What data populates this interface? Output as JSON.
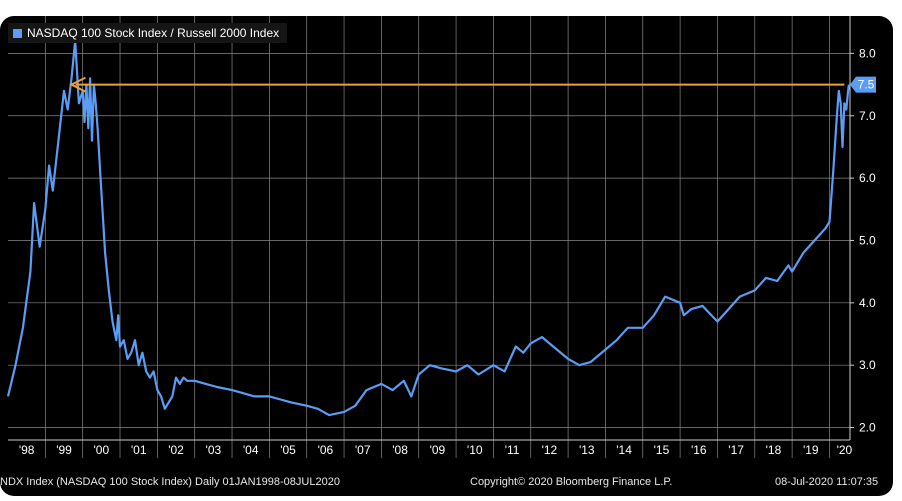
{
  "chart_data": {
    "type": "line",
    "legend": "NASDAQ 100 Stock Index / Russell 2000 Index",
    "legend_position": "top-left",
    "grid": true,
    "x_range": [
      1998.0,
      2020.55
    ],
    "ylim": [
      1.8,
      8.6
    ],
    "y_ticks": [
      "2.0",
      "3.0",
      "4.0",
      "5.0",
      "6.0",
      "7.0",
      "8.0"
    ],
    "x_ticks": [
      "'98",
      "'99",
      "'00",
      "'01",
      "'02",
      "'03",
      "'04",
      "'05",
      "'06",
      "'07",
      "'08",
      "'09",
      "'10",
      "'11",
      "'12",
      "'13",
      "'14",
      "'15",
      "'16",
      "'17",
      "'18",
      "'19",
      "'20"
    ],
    "last_value_label": "7.5",
    "series": [
      {
        "x": [
          1998.0,
          1998.2,
          1998.4,
          1998.6,
          1998.7,
          1998.85,
          1999.0,
          1999.1,
          1999.2,
          1999.35,
          1999.5,
          1999.6,
          1999.7,
          1999.8,
          1999.9,
          2000.0,
          2000.05,
          2000.1,
          2000.15,
          2000.2,
          2000.25,
          2000.3,
          2000.35,
          2000.4,
          2000.5,
          2000.6,
          2000.7,
          2000.8,
          2000.9,
          2000.95,
          2001.0,
          2001.1,
          2001.2,
          2001.3,
          2001.4,
          2001.5,
          2001.6,
          2001.7,
          2001.8,
          2001.9,
          2002.0,
          2002.1,
          2002.2,
          2002.3,
          2002.4,
          2002.5,
          2002.6,
          2002.7,
          2002.8,
          2003.0,
          2003.3,
          2003.6,
          2004.0,
          2004.3,
          2004.6,
          2005.0,
          2005.3,
          2005.6,
          2006.0,
          2006.3,
          2006.6,
          2007.0,
          2007.3,
          2007.6,
          2008.0,
          2008.3,
          2008.6,
          2008.8,
          2009.0,
          2009.3,
          2009.6,
          2010.0,
          2010.3,
          2010.6,
          2011.0,
          2011.3,
          2011.6,
          2011.8,
          2012.0,
          2012.3,
          2012.6,
          2013.0,
          2013.3,
          2013.6,
          2014.0,
          2014.3,
          2014.6,
          2015.0,
          2015.3,
          2015.6,
          2016.0,
          2016.1,
          2016.3,
          2016.6,
          2017.0,
          2017.3,
          2017.6,
          2018.0,
          2018.3,
          2018.6,
          2018.9,
          2019.0,
          2019.3,
          2019.6,
          2019.9,
          2020.0,
          2020.1,
          2020.2,
          2020.25,
          2020.3,
          2020.35,
          2020.4,
          2020.45,
          2020.5,
          2020.52
        ],
        "y": [
          2.5,
          3.0,
          3.6,
          4.5,
          5.6,
          4.9,
          5.5,
          6.2,
          5.8,
          6.6,
          7.4,
          7.1,
          7.6,
          8.2,
          7.2,
          7.4,
          6.9,
          7.5,
          6.8,
          7.6,
          6.6,
          7.5,
          7.2,
          6.8,
          5.8,
          4.8,
          4.2,
          3.7,
          3.4,
          3.8,
          3.3,
          3.4,
          3.1,
          3.2,
          3.4,
          3.0,
          3.2,
          2.9,
          2.8,
          2.9,
          2.6,
          2.5,
          2.3,
          2.4,
          2.5,
          2.8,
          2.7,
          2.8,
          2.75,
          2.75,
          2.7,
          2.65,
          2.6,
          2.55,
          2.5,
          2.5,
          2.45,
          2.4,
          2.35,
          2.3,
          2.2,
          2.25,
          2.35,
          2.6,
          2.7,
          2.6,
          2.75,
          2.5,
          2.85,
          3.0,
          2.95,
          2.9,
          3.0,
          2.85,
          3.0,
          2.9,
          3.3,
          3.2,
          3.35,
          3.45,
          3.3,
          3.1,
          3.0,
          3.05,
          3.25,
          3.4,
          3.6,
          3.6,
          3.8,
          4.1,
          4.0,
          3.8,
          3.9,
          3.95,
          3.7,
          3.9,
          4.1,
          4.2,
          4.4,
          4.35,
          4.6,
          4.5,
          4.8,
          5.0,
          5.2,
          5.3,
          6.1,
          7.0,
          7.4,
          7.2,
          6.5,
          7.2,
          7.1,
          7.4,
          7.5
        ]
      }
    ]
  },
  "annotation": {
    "arrow": {
      "from_x": 2020.4,
      "to_x": 1999.7,
      "y": 7.5,
      "color": "#f0a030"
    }
  },
  "colors": {
    "line": "#5b9cf5",
    "grid": "#888888",
    "axis_text": "#ffffff",
    "arrow": "#f0a030",
    "background": "#000000"
  },
  "footer": {
    "left": "NDX Index (NASDAQ 100 Stock Index)  Daily 01JAN1998-08JUL2020",
    "center": "Copyright© 2020 Bloomberg Finance L.P.",
    "right": "08-Jul-2020 11:07:35"
  }
}
